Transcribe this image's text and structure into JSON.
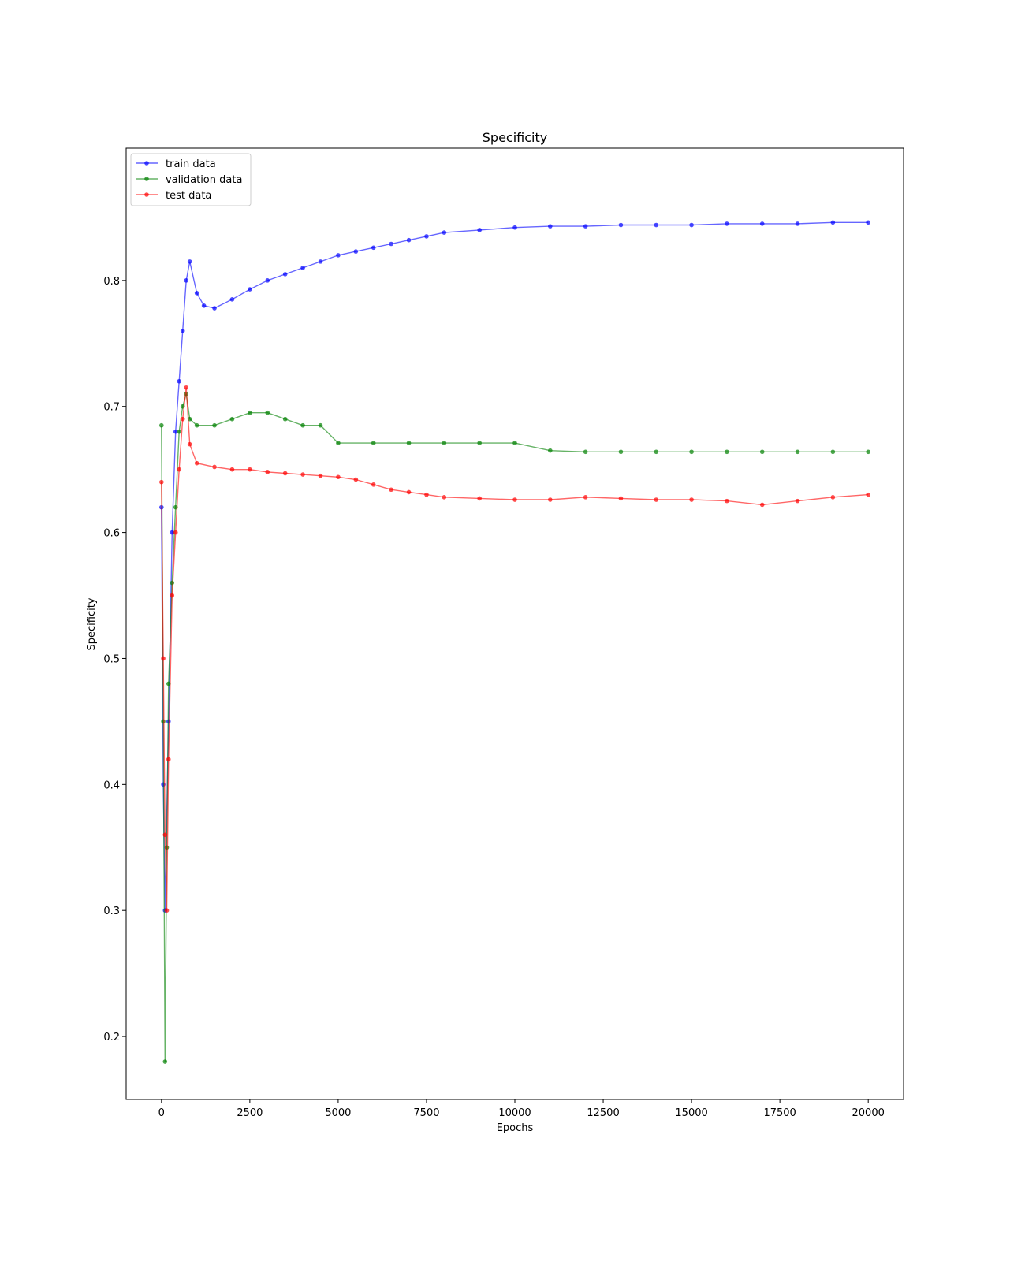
{
  "chart_data": {
    "type": "line",
    "title": "Specificity",
    "xlabel": "Epochs",
    "ylabel": "Specificity",
    "xlim": [
      -1000,
      21000
    ],
    "ylim": [
      0.15,
      0.905
    ],
    "xticks": [
      0,
      2500,
      5000,
      7500,
      10000,
      12500,
      15000,
      17500,
      20000
    ],
    "xtick_labels": [
      "0",
      "2500",
      "5000",
      "7500",
      "10000",
      "12500",
      "15000",
      "17500",
      "20000"
    ],
    "yticks": [
      0.2,
      0.3,
      0.4,
      0.5,
      0.6,
      0.7,
      0.8
    ],
    "ytick_labels": [
      "0.2",
      "0.3",
      "0.4",
      "0.5",
      "0.6",
      "0.7",
      "0.8"
    ],
    "grid": false,
    "legend_position": "top-left",
    "series": [
      {
        "name": "train data",
        "color": "#0000ff",
        "x": [
          0,
          50,
          100,
          200,
          300,
          400,
          500,
          600,
          700,
          800,
          1000,
          1200,
          1500,
          2000,
          2500,
          3000,
          3500,
          4000,
          4500,
          5000,
          5500,
          6000,
          6500,
          7000,
          7500,
          8000,
          9000,
          10000,
          11000,
          12000,
          13000,
          14000,
          15000,
          16000,
          17000,
          18000,
          19000,
          20000
        ],
        "values": [
          0.62,
          0.4,
          0.3,
          0.45,
          0.6,
          0.68,
          0.72,
          0.76,
          0.8,
          0.815,
          0.79,
          0.78,
          0.778,
          0.785,
          0.793,
          0.8,
          0.805,
          0.81,
          0.815,
          0.82,
          0.823,
          0.826,
          0.829,
          0.832,
          0.835,
          0.838,
          0.84,
          0.842,
          0.843,
          0.843,
          0.844,
          0.844,
          0.844,
          0.845,
          0.845,
          0.845,
          0.846,
          0.846
        ]
      },
      {
        "name": "validation data",
        "color": "#008000",
        "x": [
          0,
          50,
          100,
          150,
          200,
          300,
          400,
          500,
          600,
          700,
          800,
          1000,
          1500,
          2000,
          2500,
          3000,
          3500,
          4000,
          4500,
          5000,
          6000,
          7000,
          8000,
          9000,
          10000,
          11000,
          12000,
          13000,
          14000,
          15000,
          16000,
          17000,
          18000,
          19000,
          20000
        ],
        "values": [
          0.685,
          0.45,
          0.18,
          0.35,
          0.48,
          0.56,
          0.62,
          0.68,
          0.7,
          0.71,
          0.69,
          0.685,
          0.685,
          0.69,
          0.695,
          0.695,
          0.69,
          0.685,
          0.685,
          0.671,
          0.671,
          0.671,
          0.671,
          0.671,
          0.671,
          0.665,
          0.664,
          0.664,
          0.664,
          0.664,
          0.664,
          0.664,
          0.664,
          0.664,
          0.664
        ]
      },
      {
        "name": "test data",
        "color": "#ff0000",
        "x": [
          0,
          50,
          100,
          150,
          200,
          300,
          400,
          500,
          600,
          700,
          800,
          1000,
          1500,
          2000,
          2500,
          3000,
          3500,
          4000,
          4500,
          5000,
          5500,
          6000,
          6500,
          7000,
          7500,
          8000,
          9000,
          10000,
          11000,
          12000,
          13000,
          14000,
          15000,
          16000,
          17000,
          18000,
          19000,
          20000
        ],
        "values": [
          0.64,
          0.5,
          0.36,
          0.3,
          0.42,
          0.55,
          0.6,
          0.65,
          0.69,
          0.715,
          0.67,
          0.655,
          0.652,
          0.65,
          0.65,
          0.648,
          0.647,
          0.646,
          0.645,
          0.644,
          0.642,
          0.638,
          0.634,
          0.632,
          0.63,
          0.628,
          0.627,
          0.626,
          0.626,
          0.628,
          0.627,
          0.626,
          0.626,
          0.625,
          0.622,
          0.625,
          0.628,
          0.63
        ]
      }
    ]
  }
}
